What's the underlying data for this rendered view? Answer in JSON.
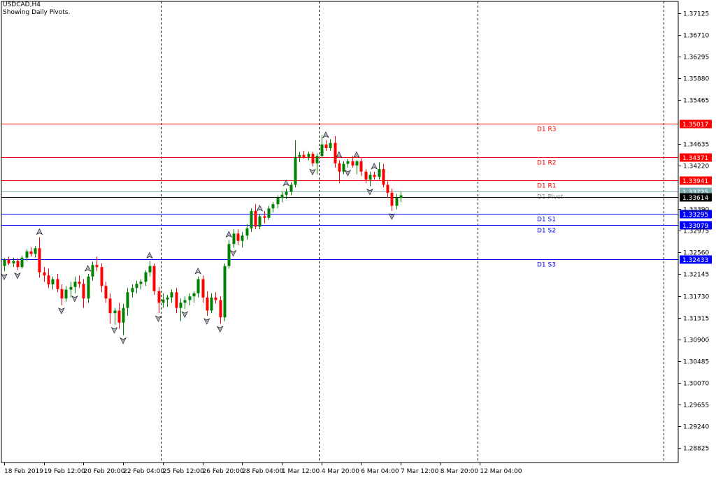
{
  "chart_data": {
    "type": "candlestick",
    "title": "USDCAD,H4",
    "subtitle": "Showing Daily Pivots.",
    "ylim": [
      1.2855,
      1.3735
    ],
    "y_ticks": [
      "1.37125",
      "1.36710",
      "1.36295",
      "1.35880",
      "1.35465",
      "1.34635",
      "1.34220",
      "1.33390",
      "1.32975",
      "1.32560",
      "1.32145",
      "1.31730",
      "1.31315",
      "1.30900",
      "1.30485",
      "1.30070",
      "1.29655",
      "1.29240",
      "1.28825"
    ],
    "x_tick_labels": [
      "18 Feb 2019",
      "19 Feb 12:00",
      "20 Feb 20:00",
      "22 Feb 04:00",
      "25 Feb 12:00",
      "26 Feb 20:00",
      "28 Feb 04:00",
      "1 Mar 12:00",
      "4 Mar 20:00",
      "6 Mar 04:00",
      "7 Mar 12:00",
      "8 Mar 20:00",
      "12 Mar 04:00"
    ],
    "pivot_levels": [
      {
        "name": "D1 R3",
        "value": 1.35017,
        "label": "1.35017",
        "color": "#ff0000",
        "text_color": "#ff0000"
      },
      {
        "name": "D1 R2",
        "value": 1.34371,
        "label": "1.34371",
        "color": "#ff0000",
        "text_color": "#ff0000"
      },
      {
        "name": "D1 R1",
        "value": 1.33941,
        "label": "1.33941",
        "color": "#ff0000",
        "text_color": "#ff0000"
      },
      {
        "name": "D1 Pivot",
        "value": 1.33725,
        "label": "1.33725",
        "color": "#7faeb3",
        "text_color": "#7f7f7f"
      },
      {
        "name": "D1 S1",
        "value": 1.33295,
        "label": "1.33295",
        "color": "#0000ff",
        "text_color": "#0000ff"
      },
      {
        "name": "D1 S2",
        "value": 1.33079,
        "label": "1.33079",
        "color": "#0000ff",
        "text_color": "#0000ff"
      },
      {
        "name": "D1 S3",
        "value": 1.32433,
        "label": "1.32433",
        "color": "#0000ff",
        "text_color": "#0000ff"
      }
    ],
    "current_price": {
      "value": 1.33614,
      "label": "1.33614"
    },
    "candles": [
      [
        1.323,
        1.3245,
        1.322,
        1.3242
      ],
      [
        1.3242,
        1.3248,
        1.3232,
        1.3235
      ],
      [
        1.3235,
        1.3246,
        1.3228,
        1.324
      ],
      [
        1.324,
        1.3245,
        1.3222,
        1.3228
      ],
      [
        1.3228,
        1.325,
        1.3225,
        1.3246
      ],
      [
        1.3246,
        1.3262,
        1.324,
        1.3258
      ],
      [
        1.3258,
        1.3266,
        1.3248,
        1.3253
      ],
      [
        1.3253,
        1.3268,
        1.3246,
        1.3264
      ],
      [
        1.3264,
        1.3285,
        1.3208,
        1.3218
      ],
      [
        1.3218,
        1.3228,
        1.32,
        1.3212
      ],
      [
        1.3212,
        1.3225,
        1.3188,
        1.3195
      ],
      [
        1.3195,
        1.321,
        1.3185,
        1.3205
      ],
      [
        1.3205,
        1.3215,
        1.318,
        1.3186
      ],
      [
        1.3186,
        1.3195,
        1.3155,
        1.3168
      ],
      [
        1.3168,
        1.3192,
        1.3162,
        1.3185
      ],
      [
        1.3185,
        1.32,
        1.317,
        1.319
      ],
      [
        1.319,
        1.321,
        1.3178,
        1.32
      ],
      [
        1.32,
        1.3212,
        1.3188,
        1.3196
      ],
      [
        1.3196,
        1.3205,
        1.315,
        1.3168
      ],
      [
        1.3168,
        1.3215,
        1.316,
        1.321
      ],
      [
        1.321,
        1.3238,
        1.3202,
        1.3232
      ],
      [
        1.3232,
        1.3248,
        1.322,
        1.3228
      ],
      [
        1.3228,
        1.3235,
        1.318,
        1.3192
      ],
      [
        1.3192,
        1.32,
        1.316,
        1.3168
      ],
      [
        1.3168,
        1.3178,
        1.312,
        1.314
      ],
      [
        1.314,
        1.315,
        1.3118,
        1.3145
      ],
      [
        1.3145,
        1.316,
        1.311,
        1.3122
      ],
      [
        1.3122,
        1.3158,
        1.3098,
        1.315
      ],
      [
        1.315,
        1.3188,
        1.3135,
        1.318
      ],
      [
        1.318,
        1.3195,
        1.317,
        1.3188
      ],
      [
        1.3188,
        1.3202,
        1.3178,
        1.3196
      ],
      [
        1.3196,
        1.3205,
        1.3185,
        1.32
      ],
      [
        1.32,
        1.3222,
        1.3192,
        1.3218
      ],
      [
        1.3218,
        1.324,
        1.321,
        1.323
      ],
      [
        1.323,
        1.3235,
        1.3175,
        1.3182
      ],
      [
        1.3182,
        1.319,
        1.314,
        1.316
      ],
      [
        1.316,
        1.3178,
        1.315,
        1.3166
      ],
      [
        1.3166,
        1.3175,
        1.3152,
        1.317
      ],
      [
        1.317,
        1.3185,
        1.316,
        1.318
      ],
      [
        1.318,
        1.3188,
        1.314,
        1.315
      ],
      [
        1.315,
        1.3168,
        1.3125,
        1.316
      ],
      [
        1.316,
        1.3172,
        1.3148,
        1.3165
      ],
      [
        1.3165,
        1.3178,
        1.3155,
        1.3172
      ],
      [
        1.3172,
        1.3182,
        1.316,
        1.3178
      ],
      [
        1.3178,
        1.321,
        1.317,
        1.3205
      ],
      [
        1.3205,
        1.3212,
        1.316,
        1.317
      ],
      [
        1.317,
        1.3182,
        1.3135,
        1.3145
      ],
      [
        1.3145,
        1.3178,
        1.314,
        1.317
      ],
      [
        1.317,
        1.318,
        1.3158,
        1.3165
      ],
      [
        1.3165,
        1.3172,
        1.312,
        1.3132
      ],
      [
        1.3132,
        1.3235,
        1.3125,
        1.323
      ],
      [
        1.323,
        1.328,
        1.3225,
        1.3272
      ],
      [
        1.3272,
        1.33,
        1.3265,
        1.3292
      ],
      [
        1.3292,
        1.33,
        1.327,
        1.3278
      ],
      [
        1.3278,
        1.3295,
        1.3265,
        1.3288
      ],
      [
        1.3288,
        1.331,
        1.328,
        1.3302
      ],
      [
        1.3302,
        1.334,
        1.3295,
        1.3335
      ],
      [
        1.3335,
        1.3348,
        1.33,
        1.3305
      ],
      [
        1.3305,
        1.333,
        1.33,
        1.3325
      ],
      [
        1.3325,
        1.3335,
        1.3312,
        1.3322
      ],
      [
        1.3322,
        1.3345,
        1.3318,
        1.334
      ],
      [
        1.334,
        1.3352,
        1.3332,
        1.3348
      ],
      [
        1.3348,
        1.3365,
        1.334,
        1.336
      ],
      [
        1.336,
        1.3372,
        1.3352,
        1.3366
      ],
      [
        1.3366,
        1.3378,
        1.3358,
        1.3372
      ],
      [
        1.3372,
        1.339,
        1.3365,
        1.3385
      ],
      [
        1.3385,
        1.347,
        1.338,
        1.3438
      ],
      [
        1.3438,
        1.3448,
        1.3428,
        1.3442
      ],
      [
        1.3442,
        1.345,
        1.3435,
        1.3438
      ],
      [
        1.3438,
        1.3448,
        1.3432,
        1.3444
      ],
      [
        1.3444,
        1.3448,
        1.342,
        1.3426
      ],
      [
        1.3426,
        1.3445,
        1.3405,
        1.344
      ],
      [
        1.344,
        1.348,
        1.3436,
        1.3462
      ],
      [
        1.3462,
        1.347,
        1.345,
        1.3455
      ],
      [
        1.3455,
        1.3472,
        1.345,
        1.3465
      ],
      [
        1.3465,
        1.3478,
        1.3418,
        1.3426
      ],
      [
        1.3426,
        1.3432,
        1.3388,
        1.341
      ],
      [
        1.341,
        1.343,
        1.3405,
        1.3425
      ],
      [
        1.3425,
        1.3435,
        1.3418,
        1.343
      ],
      [
        1.343,
        1.344,
        1.3418,
        1.3422
      ],
      [
        1.3422,
        1.3432,
        1.3405,
        1.343
      ],
      [
        1.343,
        1.3436,
        1.3402,
        1.341
      ],
      [
        1.341,
        1.3415,
        1.3388,
        1.3395
      ],
      [
        1.3395,
        1.341,
        1.3382,
        1.3404
      ],
      [
        1.3404,
        1.341,
        1.3395,
        1.34
      ],
      [
        1.34,
        1.3428,
        1.3395,
        1.3415
      ],
      [
        1.3415,
        1.3425,
        1.338,
        1.3385
      ],
      [
        1.3385,
        1.3392,
        1.336,
        1.337
      ],
      [
        1.337,
        1.3378,
        1.3335,
        1.3345
      ],
      [
        1.3345,
        1.3368,
        1.3338,
        1.336
      ],
      [
        1.336,
        1.3372,
        1.3352,
        1.3365
      ]
    ],
    "fractals_up": [
      8,
      19,
      33,
      44,
      51,
      58,
      64,
      73,
      76,
      80,
      84
    ],
    "fractals_down": [
      0,
      3,
      13,
      16,
      25,
      27,
      35,
      41,
      46,
      49,
      52,
      70,
      78,
      83,
      88
    ],
    "vertical_separators_after_candle": [
      36,
      72,
      108
    ]
  }
}
